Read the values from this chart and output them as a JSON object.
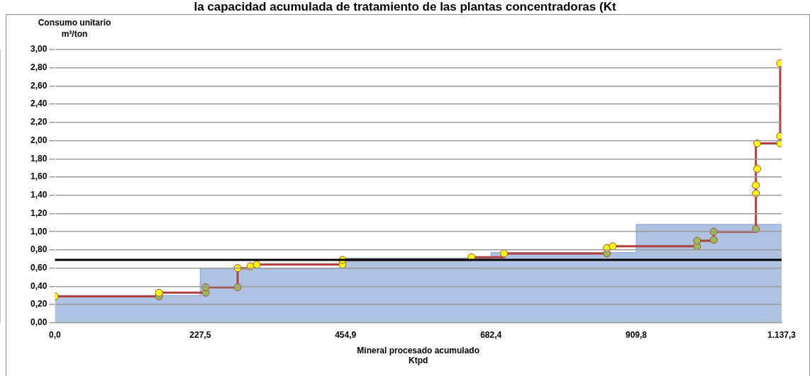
{
  "chart_data": {
    "type": "line",
    "title": "la capacidad acumulada de tratamiento de las plantas concentradoras (Kt",
    "xlabel": "Mineral procesado acumulado\nKtpd",
    "ylabel": "Consumo unitario\nm³/ton",
    "xlim": [
      0,
      1137.3
    ],
    "xticks": [
      {
        "value": 0,
        "label": "0,0"
      },
      {
        "value": 227.5,
        "label": "227,5"
      },
      {
        "value": 454.9,
        "label": "454,9"
      },
      {
        "value": 682.4,
        "label": "682,4"
      },
      {
        "value": 909.8,
        "label": "909,8"
      },
      {
        "value": 1137.3,
        "label": "1.137,3"
      }
    ],
    "ylim": [
      0,
      3
    ],
    "yticks": [
      {
        "value": 0,
        "label": "0,00"
      },
      {
        "value": 0.2,
        "label": "0,20"
      },
      {
        "value": 0.4,
        "label": "0,40"
      },
      {
        "value": 0.6,
        "label": "0,60"
      },
      {
        "value": 0.8,
        "label": "0,80"
      },
      {
        "value": 1,
        "label": "1,00"
      },
      {
        "value": 1.2,
        "label": "1,20"
      },
      {
        "value": 1.4,
        "label": "1,40"
      },
      {
        "value": 1.6,
        "label": "1,60"
      },
      {
        "value": 1.8,
        "label": "1,80"
      },
      {
        "value": 2,
        "label": "2,00"
      },
      {
        "value": 2.2,
        "label": "2,20"
      },
      {
        "value": 2.4,
        "label": "2,40"
      },
      {
        "value": 2.6,
        "label": "2,60"
      },
      {
        "value": 2.8,
        "label": "2,80"
      },
      {
        "value": 3,
        "label": "3,00"
      }
    ],
    "grid": "y",
    "legend": false,
    "ref_lines": [
      {
        "axis": "y",
        "value": 0.69,
        "color": "#000000"
      }
    ],
    "series": [
      {
        "type": "area",
        "color": "#adc3e1",
        "marker": "none",
        "x": [
          0,
          227.5,
          227.5,
          454.9,
          454.9,
          682.4,
          682.4,
          909.8,
          909.8,
          1137.3
        ],
        "values": [
          0.3,
          0.3,
          0.6,
          0.6,
          0.71,
          0.71,
          0.77,
          0.77,
          1.08,
          1.08
        ]
      },
      {
        "type": "line",
        "color": "#b0413e",
        "marker": "none",
        "x": [
          0,
          163,
          163,
          236,
          236,
          286,
          286,
          306,
          306,
          316,
          316,
          450,
          450,
          652,
          652,
          703,
          703,
          864,
          864,
          873,
          873,
          1005,
          1005,
          1031,
          1031,
          1097,
          1097,
          1135,
          1135,
          1135
        ],
        "values": [
          0.29,
          0.29,
          0.33,
          0.33,
          0.39,
          0.39,
          0.6,
          0.6,
          0.62,
          0.62,
          0.64,
          0.64,
          0.69,
          0.69,
          0.72,
          0.72,
          0.76,
          0.76,
          0.82,
          0.82,
          0.84,
          0.84,
          0.9,
          0.9,
          1.0,
          1.0,
          1.97,
          1.97,
          2.05,
          2.85
        ]
      },
      {
        "type": "scatter",
        "color": "#9bbb59",
        "marker": "circle",
        "x": [
          163,
          236,
          236,
          286,
          864,
          1005,
          1005,
          1031,
          1031,
          1097
        ],
        "values": [
          0.29,
          0.33,
          0.39,
          0.39,
          0.76,
          0.84,
          0.9,
          0.91,
          1.0,
          1.03
        ]
      },
      {
        "type": "scatter",
        "color": "#ffff00",
        "marker": "circle",
        "x": [
          0,
          163,
          286,
          306,
          316,
          450,
          450,
          652,
          703,
          864,
          873,
          1097,
          1097,
          1099,
          1099,
          1135,
          1135,
          1135
        ],
        "values": [
          0.29,
          0.33,
          0.6,
          0.62,
          0.64,
          0.64,
          0.69,
          0.72,
          0.76,
          0.82,
          0.84,
          1.42,
          1.51,
          1.69,
          1.97,
          1.97,
          2.05,
          2.85
        ]
      }
    ]
  }
}
